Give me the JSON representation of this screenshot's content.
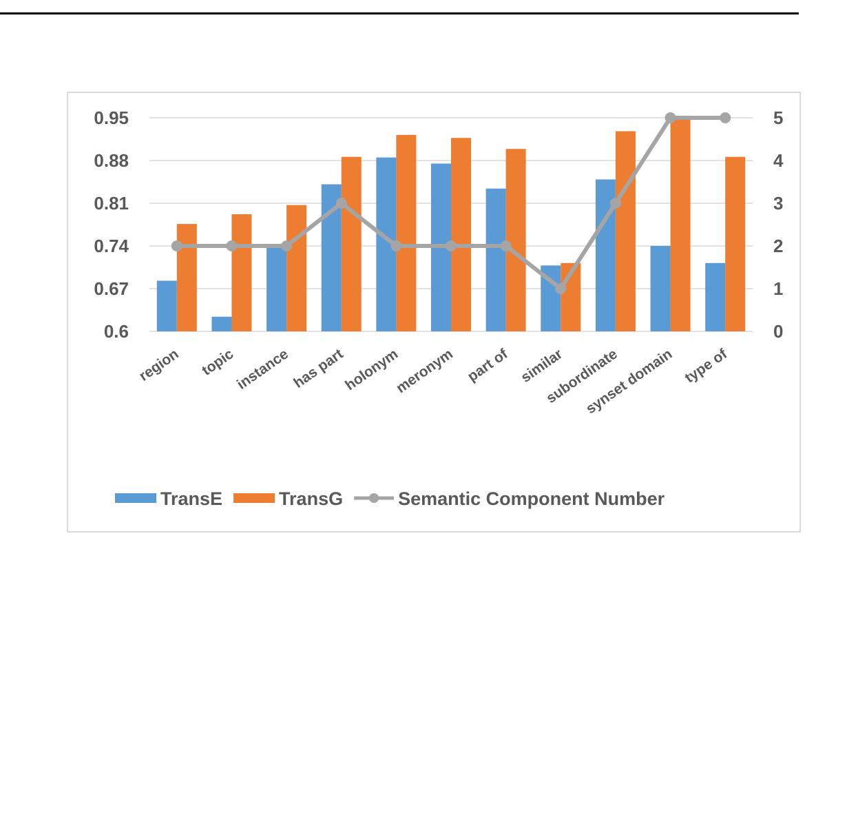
{
  "chart_data": {
    "type": "bar",
    "categories": [
      "region",
      "topic",
      "instance",
      "has part",
      "holonym",
      "meronym",
      "part of",
      "similar",
      "subordinate",
      "synset domain",
      "type of"
    ],
    "series": [
      {
        "name": "TransE",
        "kind": "bar",
        "axis": "left",
        "color": "#5b9bd5",
        "values": [
          0.683,
          0.624,
          0.738,
          0.841,
          0.885,
          0.875,
          0.834,
          0.708,
          0.849,
          0.74,
          0.712
        ]
      },
      {
        "name": "TransG",
        "kind": "bar",
        "axis": "left",
        "color": "#ed7d31",
        "values": [
          0.776,
          0.792,
          0.807,
          0.886,
          0.922,
          0.917,
          0.899,
          0.712,
          0.928,
          0.95,
          0.886
        ]
      },
      {
        "name": "Semantic Component Number",
        "kind": "line",
        "axis": "right",
        "color": "#a5a5a5",
        "values": [
          2,
          2,
          2,
          3,
          2,
          2,
          2,
          1,
          3,
          5,
          5
        ]
      }
    ],
    "y_left": {
      "ylim": [
        0.6,
        0.95
      ],
      "ticks": [
        "0.6",
        "0.67",
        "0.74",
        "0.81",
        "0.88",
        "0.95"
      ]
    },
    "y_right": {
      "ylim": [
        0,
        5
      ],
      "ticks": [
        "0",
        "1",
        "2",
        "3",
        "4",
        "5"
      ]
    },
    "grid": true,
    "legend_position": "bottom"
  }
}
